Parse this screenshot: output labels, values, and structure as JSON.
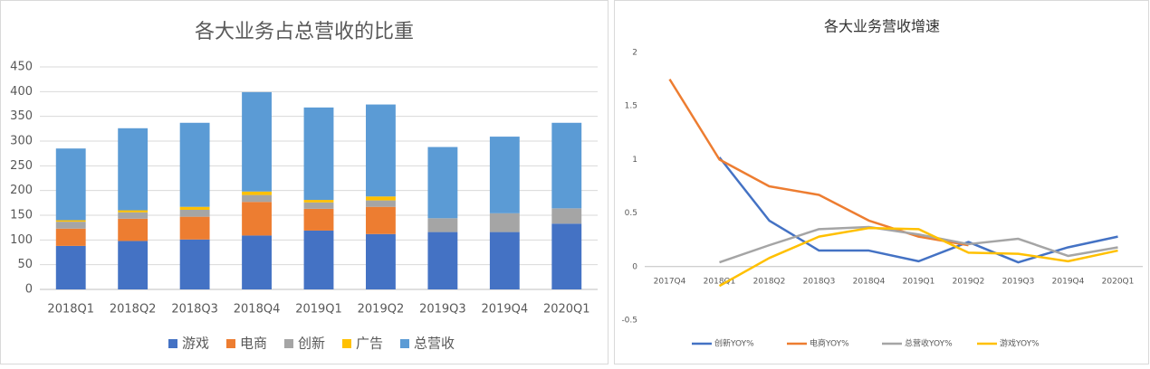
{
  "chart_data": [
    {
      "type": "stacked-bar",
      "title": "各大业务占总营收的比重",
      "categories": [
        "2018Q1",
        "2018Q2",
        "2018Q3",
        "2018Q4",
        "2019Q1",
        "2019Q2",
        "2019Q3",
        "2019Q4",
        "2020Q1"
      ],
      "series": [
        {
          "name": "游戏",
          "color": "#4472c4",
          "values": [
            88,
            98,
            101,
            109,
            119,
            112,
            116,
            116,
            133
          ]
        },
        {
          "name": "电商",
          "color": "#ed7d31",
          "values": [
            35,
            45,
            46,
            68,
            44,
            55,
            null,
            null,
            null
          ]
        },
        {
          "name": "创新",
          "color": "#a5a5a5",
          "values": [
            14,
            13,
            14,
            14,
            13,
            13,
            28,
            38,
            31
          ]
        },
        {
          "name": "广告",
          "color": "#ffc000",
          "values": [
            3,
            4,
            6,
            7,
            5,
            8,
            null,
            null,
            null
          ]
        },
        {
          "name": "总营收",
          "color": "#5b9bd5",
          "values": [
            145,
            166,
            170,
            201,
            187,
            186,
            144,
            155,
            173
          ]
        }
      ],
      "ylim": [
        0,
        450
      ],
      "yticks": [
        0,
        50,
        100,
        150,
        200,
        250,
        300,
        350,
        400,
        450
      ],
      "grid": true
    },
    {
      "type": "line",
      "title": "各大业务营收增速",
      "categories": [
        "2017Q4",
        "2018Q1",
        "2018Q2",
        "2018Q3",
        "2018Q4",
        "2019Q1",
        "2019Q2",
        "2019Q3",
        "2019Q4",
        "2020Q1"
      ],
      "series": [
        {
          "name": "创新YOY%",
          "color": "#4472c4",
          "values": [
            null,
            1.02,
            0.43,
            0.15,
            0.15,
            0.05,
            0.23,
            0.04,
            0.18,
            0.28
          ]
        },
        {
          "name": "电商YOY%",
          "color": "#ed7d31",
          "values": [
            1.75,
            1.0,
            0.75,
            0.67,
            0.43,
            0.28,
            0.2,
            null,
            null,
            null
          ]
        },
        {
          "name": "总营收YOY%",
          "color": "#a5a5a5",
          "values": [
            null,
            0.04,
            0.2,
            0.35,
            0.37,
            0.3,
            0.21,
            0.26,
            0.1,
            0.18
          ]
        },
        {
          "name": "游戏YOY%",
          "color": "#ffc000",
          "values": [
            null,
            -0.18,
            0.08,
            0.28,
            0.36,
            0.35,
            0.13,
            0.12,
            0.05,
            0.15
          ]
        }
      ],
      "ylim": [
        -0.5,
        2
      ],
      "yticks": [
        -0.5,
        0,
        0.5,
        1,
        1.5,
        2
      ],
      "grid": false
    }
  ]
}
